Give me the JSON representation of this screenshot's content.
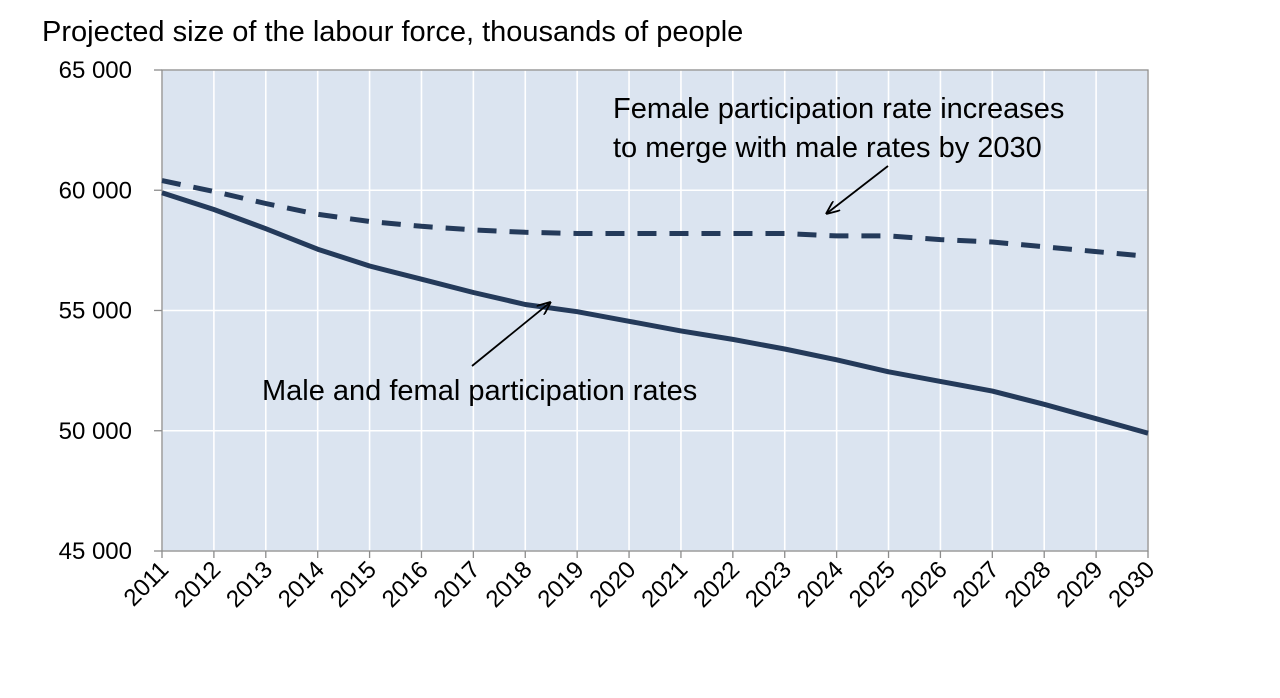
{
  "chart_data": {
    "type": "line",
    "title": "Projected size of the labour force, thousands of people",
    "xlabel": "",
    "ylabel": "",
    "x": [
      "2011",
      "2012",
      "2013",
      "2014",
      "2015",
      "2016",
      "2017",
      "2018",
      "2019",
      "2020",
      "2021",
      "2022",
      "2023",
      "2024",
      "2025",
      "2026",
      "2027",
      "2028",
      "2029",
      "2030"
    ],
    "ylim": [
      45000,
      65000
    ],
    "y_ticks": [
      45000,
      50000,
      55000,
      60000,
      65000
    ],
    "y_tick_labels": [
      "45 000",
      "50 000",
      "55 000",
      "60 000",
      "65 000"
    ],
    "grid": true,
    "legend": "none",
    "series": [
      {
        "name": "Female participation rate increases to merge with male rates by 2030",
        "style": "dashed",
        "values": [
          60400,
          59950,
          59450,
          59000,
          58700,
          58500,
          58350,
          58250,
          58200,
          58200,
          58200,
          58200,
          58200,
          58100,
          58100,
          57950,
          57850,
          57650,
          57450,
          57250
        ]
      },
      {
        "name": "Male and femal participation rates",
        "style": "solid",
        "values": [
          59900,
          59200,
          58400,
          57550,
          56850,
          56300,
          55750,
          55250,
          54950,
          54550,
          54150,
          53800,
          53400,
          52950,
          52450,
          52050,
          51650,
          51100,
          50500,
          49900
        ]
      }
    ],
    "annotations": [
      {
        "text_lines": [
          "Female participation rate increases",
          "to merge with male rates by 2030"
        ],
        "arrow_to": {
          "x": "2024",
          "y": 58700
        }
      },
      {
        "text_lines": [
          "Male and femal participation rates"
        ],
        "arrow_to": {
          "x": "2019",
          "y": 55500
        }
      }
    ],
    "colors": {
      "plot_background": "#dbe4f0",
      "grid": "#ffffff",
      "line": "#243a5a",
      "axis": "#8c8c8c",
      "arrow": "#000000"
    }
  }
}
